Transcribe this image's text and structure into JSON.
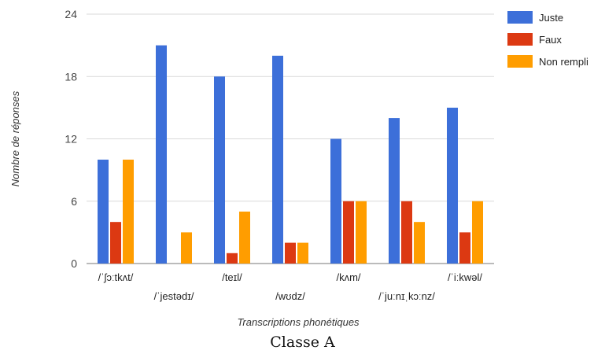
{
  "caption": "Classe A",
  "colors": {
    "Juste": "#3c6fd9",
    "Faux": "#dc3912",
    "Non rempli": "#ff9d00",
    "grid": "#d9d9d9",
    "axis": "#777777"
  },
  "chart_data": {
    "type": "bar",
    "title": "",
    "xlabel": "Transcriptions phonétiques",
    "ylabel": "Nombre de réponses",
    "ylim": [
      0,
      24
    ],
    "yticks": [
      0,
      6,
      12,
      18,
      24
    ],
    "grid": true,
    "legend_position": "right",
    "categories": [
      "/ˈʃɔːtkʌt/",
      "/ˈjestədɪ/",
      "/teɪl/",
      "/wʊdz/",
      "/kʌm/",
      "/ˈjuːnɪˌkɔːnz/",
      "/ˈiːkwəl/"
    ],
    "series": [
      {
        "name": "Juste",
        "values": [
          10,
          21,
          18,
          20,
          12,
          14,
          15
        ]
      },
      {
        "name": "Faux",
        "values": [
          4,
          0,
          1,
          2,
          6,
          6,
          3
        ]
      },
      {
        "name": "Non rempli",
        "values": [
          10,
          3,
          5,
          2,
          6,
          4,
          6
        ]
      }
    ]
  }
}
